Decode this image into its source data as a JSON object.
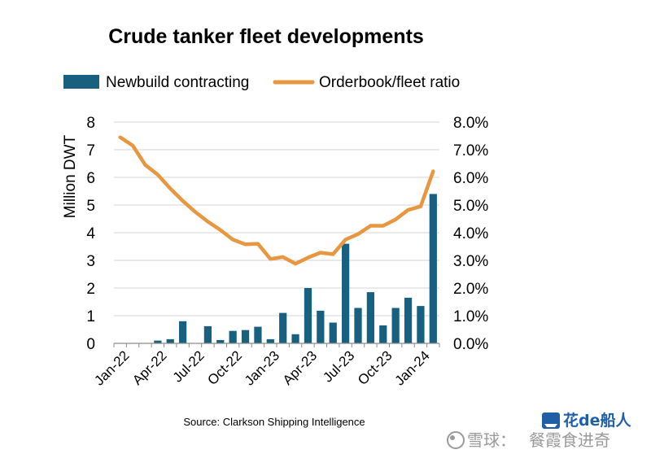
{
  "chart_data": {
    "type": "bar+line",
    "title": "Crude tanker fleet developments",
    "ylabel": "Million DWT",
    "ylim": [
      0,
      8
    ],
    "y2lim": [
      0,
      0.08
    ],
    "yticks": [
      "0",
      "1",
      "2",
      "3",
      "4",
      "5",
      "6",
      "7",
      "8"
    ],
    "y2ticks": [
      "0.0%",
      "1.0%",
      "2.0%",
      "3.0%",
      "4.0%",
      "5.0%",
      "6.0%",
      "7.0%",
      "8.0%"
    ],
    "xtick_labels": [
      "Jan-22",
      "Apr-22",
      "Jul-22",
      "Oct-22",
      "Jan-23",
      "Apr-23",
      "Jul-23",
      "Oct-23",
      "Jan-24"
    ],
    "xtick_index": [
      0,
      3,
      6,
      9,
      12,
      15,
      18,
      21,
      24
    ],
    "months": [
      "Jan-22",
      "Feb-22",
      "Mar-22",
      "Apr-22",
      "May-22",
      "Jun-22",
      "Jul-22",
      "Aug-22",
      "Sep-22",
      "Oct-22",
      "Nov-22",
      "Dec-22",
      "Jan-23",
      "Feb-23",
      "Mar-23",
      "Apr-23",
      "May-23",
      "Jun-23",
      "Jul-23",
      "Aug-23",
      "Sep-23",
      "Oct-23",
      "Nov-23",
      "Dec-23",
      "Jan-24",
      "Feb-24"
    ],
    "series": [
      {
        "name": "Newbuild contracting",
        "kind": "bar",
        "axis": "left",
        "color": "#17607f",
        "values": [
          0,
          0,
          0,
          0.1,
          0.15,
          0.8,
          0,
          0.62,
          0.12,
          0.45,
          0.48,
          0.6,
          0.15,
          1.1,
          0.33,
          2.0,
          1.18,
          0.75,
          3.6,
          1.28,
          1.85,
          0.65,
          1.28,
          1.65,
          1.35,
          5.4
        ]
      },
      {
        "name": "Orderbook/fleet ratio",
        "kind": "line",
        "axis": "right",
        "color": "#e8963f",
        "values": [
          0.0745,
          0.0715,
          0.0645,
          0.061,
          0.056,
          0.0515,
          0.0475,
          0.044,
          0.041,
          0.0375,
          0.0358,
          0.036,
          0.0305,
          0.0312,
          0.0288,
          0.031,
          0.0328,
          0.0322,
          0.0375,
          0.0395,
          0.0425,
          0.0425,
          0.0448,
          0.0482,
          0.0495,
          0.0622
        ]
      }
    ],
    "grid": true,
    "legend": "top",
    "source": "Source: Clarkson Shipping Intelligence"
  },
  "watermark": {
    "snowball": "雪球：",
    "author": "餐霞食进奇",
    "logo": "花de船人"
  }
}
